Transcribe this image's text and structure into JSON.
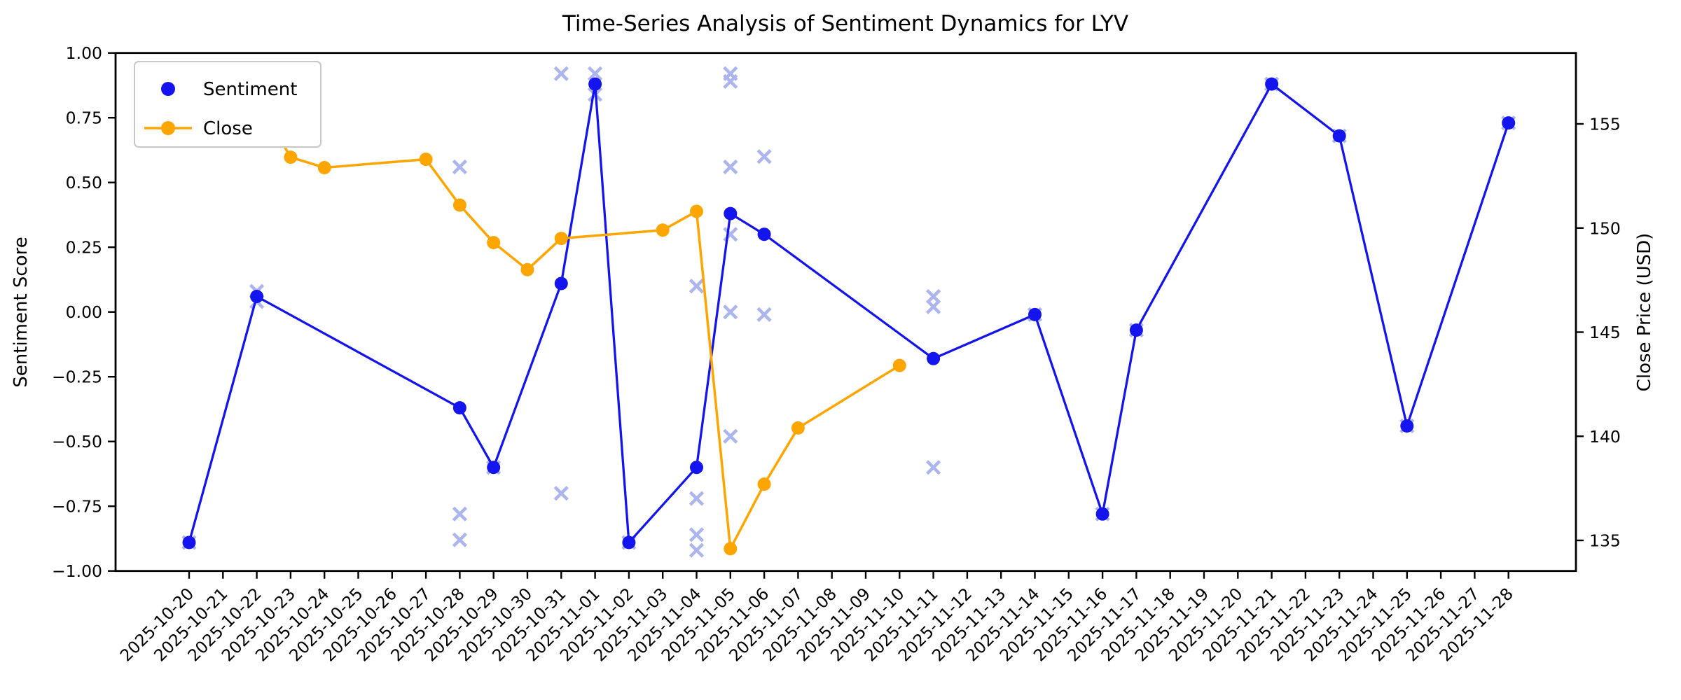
{
  "chart_data": {
    "type": "line",
    "title": "Time-Series Analysis of Sentiment Dynamics for LYV",
    "grid": false,
    "legend": {
      "position": "upper-left",
      "entries": [
        "Sentiment",
        "Close"
      ]
    },
    "colors": {
      "sentiment_line": "#1414ee",
      "close_line": "#ffa500",
      "scatter_x": "#a9b2ef",
      "axis": "#000000",
      "legend_border": "#c8c8c8",
      "background": "#ffffff"
    },
    "y_left": {
      "label": "Sentiment Score",
      "range": [
        -1.0,
        1.0
      ],
      "tick_labels": [
        "1.00",
        "0.75",
        "0.50",
        "0.25",
        "0.00",
        "−0.25",
        "−0.50",
        "−0.75",
        "−1.00"
      ],
      "tick_values": [
        1.0,
        0.75,
        0.5,
        0.25,
        0.0,
        -0.25,
        -0.5,
        -0.75,
        -1.0
      ]
    },
    "y_right": {
      "label": "Close Price (USD)",
      "range": [
        133.5,
        158.4
      ],
      "tick_labels": [
        "155",
        "150",
        "145",
        "140",
        "135"
      ],
      "tick_values": [
        155,
        150,
        145,
        140,
        135
      ]
    },
    "x": {
      "dates": [
        "2025-10-20",
        "2025-10-21",
        "2025-10-22",
        "2025-10-23",
        "2025-10-24",
        "2025-10-25",
        "2025-10-26",
        "2025-10-27",
        "2025-10-28",
        "2025-10-29",
        "2025-10-30",
        "2025-10-31",
        "2025-11-01",
        "2025-11-02",
        "2025-11-03",
        "2025-11-04",
        "2025-11-05",
        "2025-11-06",
        "2025-11-07",
        "2025-11-08",
        "2025-11-09",
        "2025-11-10",
        "2025-11-11",
        "2025-11-12",
        "2025-11-13",
        "2025-11-14",
        "2025-11-15",
        "2025-11-16",
        "2025-11-17",
        "2025-11-18",
        "2025-11-19",
        "2025-11-20",
        "2025-11-21",
        "2025-11-22",
        "2025-11-23",
        "2025-11-24",
        "2025-11-25",
        "2025-11-26",
        "2025-11-27",
        "2025-11-28"
      ],
      "tick_rotation_deg": 45
    },
    "series": [
      {
        "name": "Sentiment",
        "axis": "left",
        "style": "line-with-dots",
        "points": [
          {
            "date": "2025-10-20",
            "value": -0.89
          },
          {
            "date": "2025-10-22",
            "value": 0.06
          },
          {
            "date": "2025-10-28",
            "value": -0.37
          },
          {
            "date": "2025-10-29",
            "value": -0.6
          },
          {
            "date": "2025-10-31",
            "value": 0.11
          },
          {
            "date": "2025-11-01",
            "value": 0.88
          },
          {
            "date": "2025-11-02",
            "value": -0.89
          },
          {
            "date": "2025-11-04",
            "value": -0.6
          },
          {
            "date": "2025-11-05",
            "value": 0.38
          },
          {
            "date": "2025-11-06",
            "value": 0.3
          },
          {
            "date": "2025-11-11",
            "value": -0.18
          },
          {
            "date": "2025-11-14",
            "value": -0.01
          },
          {
            "date": "2025-11-16",
            "value": -0.78
          },
          {
            "date": "2025-11-17",
            "value": -0.07
          },
          {
            "date": "2025-11-21",
            "value": 0.88
          },
          {
            "date": "2025-11-23",
            "value": 0.68
          },
          {
            "date": "2025-11-25",
            "value": -0.44
          },
          {
            "date": "2025-11-28",
            "value": 0.73
          }
        ]
      },
      {
        "name": "Close",
        "axis": "right",
        "style": "line-with-dots",
        "points": [
          {
            "date": "2025-10-20",
            "value": 156.8
          },
          {
            "date": "2025-10-21",
            "value": 157.4
          },
          {
            "date": "2025-10-22",
            "value": 156.2
          },
          {
            "date": "2025-10-23",
            "value": 153.4
          },
          {
            "date": "2025-10-24",
            "value": 152.9
          },
          {
            "date": "2025-10-27",
            "value": 153.3
          },
          {
            "date": "2025-10-28",
            "value": 151.1
          },
          {
            "date": "2025-10-29",
            "value": 149.3
          },
          {
            "date": "2025-10-30",
            "value": 148.0
          },
          {
            "date": "2025-10-31",
            "value": 149.5
          },
          {
            "date": "2025-11-03",
            "value": 149.9
          },
          {
            "date": "2025-11-04",
            "value": 150.8
          },
          {
            "date": "2025-11-05",
            "value": 134.6
          },
          {
            "date": "2025-11-06",
            "value": 137.7
          },
          {
            "date": "2025-11-07",
            "value": 140.4
          },
          {
            "date": "2025-11-10",
            "value": 143.4
          }
        ]
      },
      {
        "name": "sentiment-scatter",
        "axis": "left",
        "style": "x-marks",
        "points": [
          {
            "date": "2025-10-20",
            "value": -0.89
          },
          {
            "date": "2025-10-22",
            "value": 0.08
          },
          {
            "date": "2025-10-22",
            "value": 0.04
          },
          {
            "date": "2025-10-28",
            "value": 0.56
          },
          {
            "date": "2025-10-28",
            "value": -0.78
          },
          {
            "date": "2025-10-28",
            "value": -0.88
          },
          {
            "date": "2025-10-29",
            "value": -0.6
          },
          {
            "date": "2025-10-31",
            "value": 0.92
          },
          {
            "date": "2025-10-31",
            "value": -0.7
          },
          {
            "date": "2025-11-01",
            "value": 0.92
          },
          {
            "date": "2025-11-01",
            "value": 0.84
          },
          {
            "date": "2025-11-02",
            "value": -0.89
          },
          {
            "date": "2025-11-04",
            "value": 0.1
          },
          {
            "date": "2025-11-04",
            "value": -0.72
          },
          {
            "date": "2025-11-04",
            "value": -0.86
          },
          {
            "date": "2025-11-04",
            "value": -0.92
          },
          {
            "date": "2025-11-05",
            "value": 0.92
          },
          {
            "date": "2025-11-05",
            "value": 0.89
          },
          {
            "date": "2025-11-05",
            "value": 0.56
          },
          {
            "date": "2025-11-05",
            "value": 0.3
          },
          {
            "date": "2025-11-05",
            "value": 0.0
          },
          {
            "date": "2025-11-05",
            "value": -0.48
          },
          {
            "date": "2025-11-06",
            "value": 0.6
          },
          {
            "date": "2025-11-06",
            "value": -0.01
          },
          {
            "date": "2025-11-11",
            "value": 0.06
          },
          {
            "date": "2025-11-11",
            "value": 0.02
          },
          {
            "date": "2025-11-11",
            "value": -0.6
          },
          {
            "date": "2025-11-14",
            "value": -0.01
          },
          {
            "date": "2025-11-16",
            "value": -0.78
          },
          {
            "date": "2025-11-17",
            "value": -0.07
          },
          {
            "date": "2025-11-21",
            "value": 0.88
          },
          {
            "date": "2025-11-23",
            "value": 0.68
          },
          {
            "date": "2025-11-25",
            "value": -0.44
          },
          {
            "date": "2025-11-28",
            "value": 0.73
          }
        ]
      }
    ]
  }
}
